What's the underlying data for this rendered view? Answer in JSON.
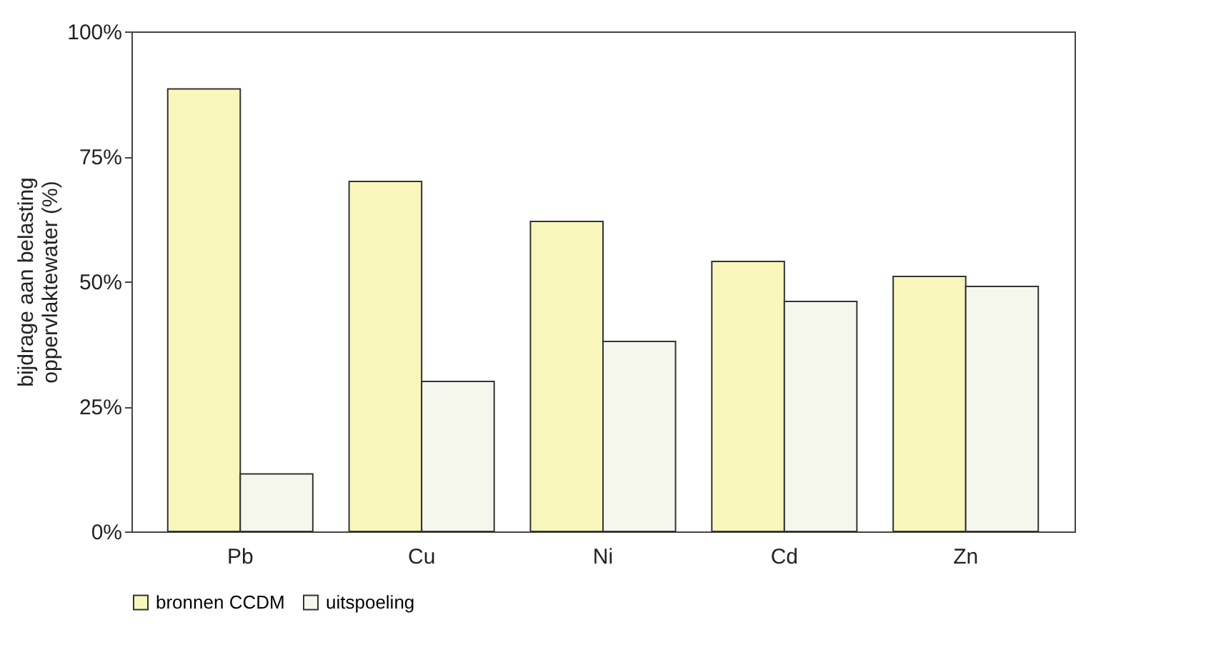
{
  "chart_data": {
    "type": "bar",
    "ylabel": "bijdrage aan belasting\noppervlaktewater (%)",
    "categories": [
      "Pb",
      "Cu",
      "Ni",
      "Cd",
      "Zn"
    ],
    "series": [
      {
        "name": "bronnen CCDM",
        "color": "#f9f6bc",
        "values": [
          88.5,
          70,
          62,
          54,
          51
        ]
      },
      {
        "name": "uitspoeling",
        "color": "#f5f6ec",
        "values": [
          11.5,
          30,
          38,
          46,
          49
        ]
      }
    ],
    "ylim": [
      0,
      100
    ],
    "yticks": [
      {
        "value": 0,
        "label": "0%"
      },
      {
        "value": 25,
        "label": "25%"
      },
      {
        "value": 50,
        "label": "50%"
      },
      {
        "value": 75,
        "label": "75%"
      },
      {
        "value": 100,
        "label": "100%"
      }
    ],
    "grid": false,
    "legend": "bottom"
  }
}
